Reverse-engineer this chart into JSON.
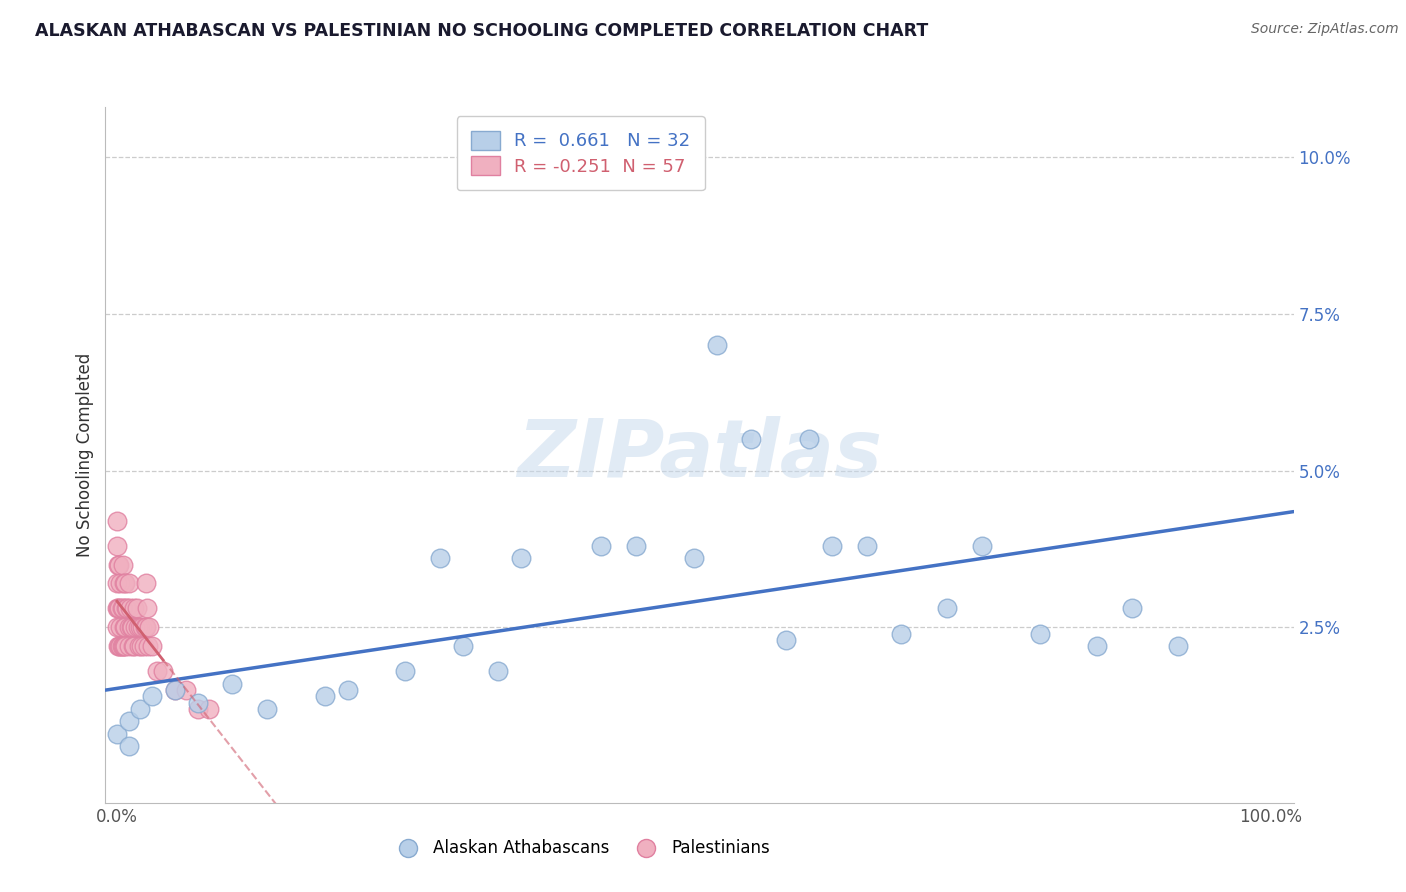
{
  "title": "ALASKAN ATHABASCAN VS PALESTINIAN NO SCHOOLING COMPLETED CORRELATION CHART",
  "source": "Source: ZipAtlas.com",
  "ylabel": "No Schooling Completed",
  "xlim": [
    -0.01,
    1.02
  ],
  "ylim": [
    -0.003,
    0.108
  ],
  "xtick_positions": [
    0.0,
    1.0
  ],
  "xtick_labels": [
    "0.0%",
    "100.0%"
  ],
  "ytick_positions": [
    0.025,
    0.05,
    0.075,
    0.1
  ],
  "ytick_labels": [
    "2.5%",
    "5.0%",
    "7.5%",
    "10.0%"
  ],
  "r_blue": 0.661,
  "n_blue": 32,
  "r_pink": -0.251,
  "n_pink": 57,
  "legend_labels": [
    "Alaskan Athabascans",
    "Palestinians"
  ],
  "blue_fill": "#b8cfe8",
  "pink_fill": "#f0b0c0",
  "blue_edge": "#88aad0",
  "pink_edge": "#e080a0",
  "line_blue": "#4472c4",
  "line_pink": "#d06070",
  "text_blue": "#4472c4",
  "text_pink": "#d06070",
  "watermark": "ZIPatlas",
  "blue_x": [
    0.0,
    0.01,
    0.01,
    0.02,
    0.03,
    0.05,
    0.07,
    0.1,
    0.13,
    0.18,
    0.2,
    0.25,
    0.28,
    0.3,
    0.33,
    0.35,
    0.42,
    0.45,
    0.5,
    0.52,
    0.55,
    0.58,
    0.6,
    0.62,
    0.65,
    0.68,
    0.72,
    0.75,
    0.8,
    0.85,
    0.88,
    0.92
  ],
  "blue_y": [
    0.008,
    0.006,
    0.01,
    0.012,
    0.014,
    0.015,
    0.013,
    0.016,
    0.012,
    0.014,
    0.015,
    0.018,
    0.036,
    0.022,
    0.018,
    0.036,
    0.038,
    0.038,
    0.036,
    0.07,
    0.055,
    0.023,
    0.055,
    0.038,
    0.038,
    0.024,
    0.028,
    0.038,
    0.024,
    0.022,
    0.028,
    0.022
  ],
  "pink_x": [
    0.0,
    0.0,
    0.0,
    0.0,
    0.0,
    0.001,
    0.001,
    0.001,
    0.002,
    0.002,
    0.002,
    0.003,
    0.003,
    0.003,
    0.004,
    0.004,
    0.005,
    0.005,
    0.005,
    0.006,
    0.006,
    0.006,
    0.007,
    0.007,
    0.007,
    0.008,
    0.009,
    0.01,
    0.01,
    0.01,
    0.011,
    0.012,
    0.013,
    0.014,
    0.015,
    0.015,
    0.016,
    0.017,
    0.018,
    0.019,
    0.02,
    0.021,
    0.022,
    0.023,
    0.024,
    0.025,
    0.025,
    0.026,
    0.027,
    0.028,
    0.03,
    0.035,
    0.04,
    0.05,
    0.06,
    0.07,
    0.08
  ],
  "pink_y": [
    0.042,
    0.038,
    0.032,
    0.028,
    0.025,
    0.035,
    0.028,
    0.022,
    0.035,
    0.028,
    0.022,
    0.032,
    0.025,
    0.022,
    0.028,
    0.022,
    0.035,
    0.028,
    0.022,
    0.032,
    0.025,
    0.022,
    0.032,
    0.025,
    0.022,
    0.028,
    0.028,
    0.032,
    0.025,
    0.022,
    0.028,
    0.025,
    0.025,
    0.022,
    0.028,
    0.022,
    0.025,
    0.028,
    0.025,
    0.022,
    0.025,
    0.022,
    0.025,
    0.022,
    0.025,
    0.032,
    0.025,
    0.028,
    0.022,
    0.025,
    0.022,
    0.018,
    0.018,
    0.015,
    0.015,
    0.012,
    0.012
  ]
}
